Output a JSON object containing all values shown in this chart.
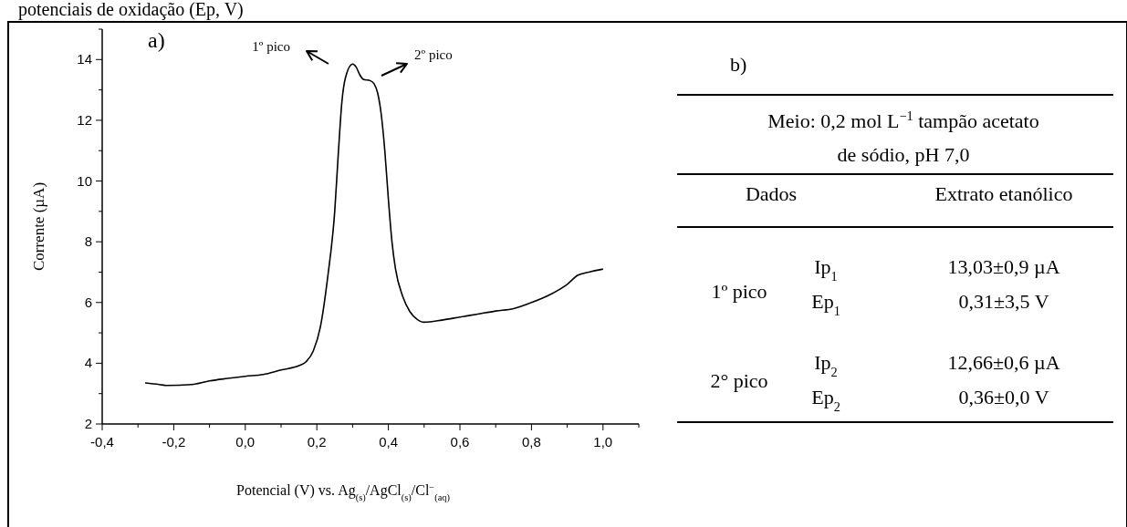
{
  "chart_data": [
    {
      "type": "line",
      "title": "potenciais de oxidação (Ep, V)",
      "xlabel": "Potencial (V) vs. Ag$_{(s)}$/AgCl$_{(s)}$/Cl$^{−}$$_{(aq)}$",
      "ylabel": "Corrente (µA)",
      "xlim": [
        -0.4,
        1.1
      ],
      "ylim": [
        2,
        15
      ],
      "xticks": [
        {
          "value": -0.4,
          "label": "-0,4"
        },
        {
          "value": -0.3,
          "label": null
        },
        {
          "value": -0.2,
          "label": "-0,2"
        },
        {
          "value": -0.1,
          "label": null
        },
        {
          "value": 0,
          "label": "0,0"
        },
        {
          "value": 0.1,
          "label": null
        },
        {
          "value": 0.2,
          "label": "0,2"
        },
        {
          "value": 0.3,
          "label": null
        },
        {
          "value": 0.4,
          "label": "0,4"
        },
        {
          "value": 0.5,
          "label": null
        },
        {
          "value": 0.6,
          "label": "0,6"
        },
        {
          "value": 0.7,
          "label": null
        },
        {
          "value": 0.8,
          "label": "0,8"
        },
        {
          "value": 0.9,
          "label": null
        },
        {
          "value": 1.0,
          "label": "1,0"
        },
        {
          "value": 1.1,
          "label": null
        }
      ],
      "yticks": [
        2,
        {
          "value": 3,
          "label": null
        },
        4,
        {
          "value": 5,
          "label": null
        },
        6,
        {
          "value": 7,
          "label": null
        },
        8,
        {
          "value": 9,
          "label": null
        },
        10,
        {
          "value": 11,
          "label": null
        },
        12,
        {
          "value": 13,
          "label": null
        },
        14,
        {
          "value": 15,
          "label": null
        }
      ],
      "series": [
        {
          "color": "#000000",
          "x": [
            -0.28,
            -0.24,
            -0.22,
            -0.15,
            -0.1,
            -0.05,
            0,
            0.05,
            0.1,
            0.15,
            0.17,
            0.19,
            0.21,
            0.23,
            0.25,
            0.26,
            0.27,
            0.28,
            0.3,
            0.31,
            0.32,
            0.33,
            0.35,
            0.36,
            0.37,
            0.38,
            0.39,
            0.4,
            0.41,
            0.42,
            0.44,
            0.46,
            0.48,
            0.5,
            0.55,
            0.6,
            0.65,
            0.7,
            0.75,
            0.8,
            0.85,
            0.9,
            0.93,
            0.96,
            1.0
          ],
          "values": [
            3.35,
            3.3,
            3.27,
            3.3,
            3.42,
            3.5,
            3.57,
            3.63,
            3.78,
            3.92,
            4.05,
            4.4,
            5.2,
            6.8,
            9,
            10.9,
            12.6,
            13.4,
            13.85,
            13.75,
            13.5,
            13.35,
            13.3,
            13.2,
            12.9,
            12.2,
            11,
            9.4,
            8,
            7.1,
            6.2,
            5.7,
            5.45,
            5.35,
            5.42,
            5.52,
            5.62,
            5.72,
            5.8,
            6,
            6.25,
            6.6,
            6.9,
            7,
            7.1
          ]
        }
      ],
      "annotations": [
        "a)",
        "1º pico",
        "2º pico"
      ]
    },
    {
      "type": "other",
      "title": "b)",
      "annotations": [
        "Meio: 0,2 mol L$^{−1}$ tampão acetato",
        "de sódio, pH 7,0",
        "Dados",
        "Extrato etanólico",
        "1º pico",
        "Ip$_{1}$",
        "13,03±0,9 µA",
        "Ep$_{1}$",
        "0,31±3,5 V",
        "2° pico",
        "Ip$_{2}$",
        "12,66±0,6 µA",
        "Ep$_{2}$",
        "0,36±0,0 V"
      ]
    }
  ]
}
